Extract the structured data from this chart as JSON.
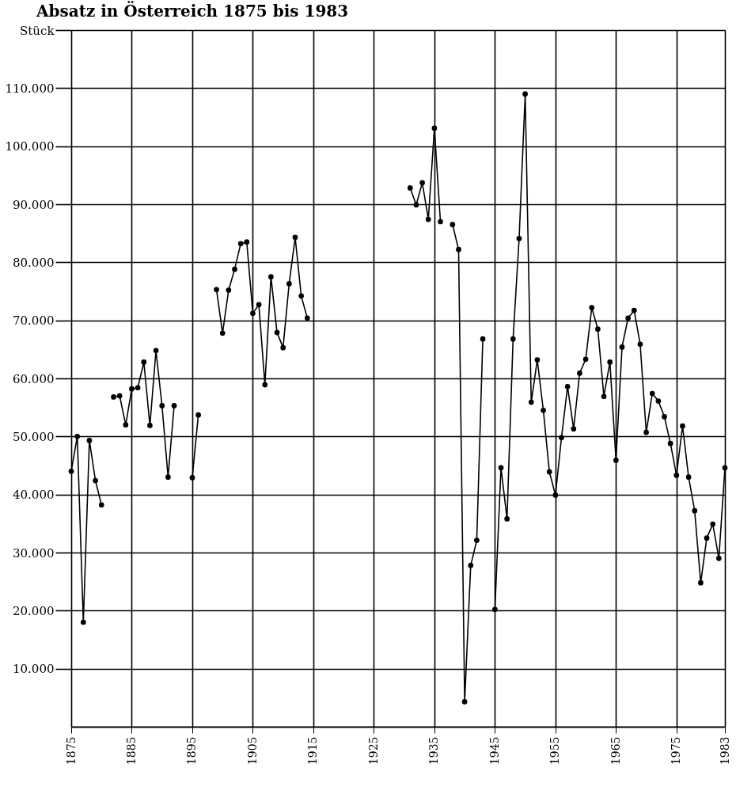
{
  "chart_data": {
    "type": "line",
    "title": "Absatz in Österreich 1875 bis 1983",
    "x": [
      1875,
      1876,
      1877,
      1878,
      1879,
      1880,
      1881,
      1882,
      1883,
      1884,
      1885,
      1886,
      1887,
      1888,
      1889,
      1890,
      1891,
      1892,
      1893,
      1895,
      1896,
      1897,
      1899,
      1900,
      1901,
      1902,
      1903,
      1904,
      1905,
      1906,
      1907,
      1908,
      1909,
      1910,
      1911,
      1912,
      1913,
      1914,
      1915,
      1931,
      1932,
      1933,
      1934,
      1935,
      1936,
      1937,
      1938,
      1939,
      1940,
      1941,
      1942,
      1943,
      1944,
      1945,
      1946,
      1947,
      1948,
      1949,
      1950,
      1951,
      1952,
      1953,
      1954,
      1955,
      1956,
      1957,
      1958,
      1959,
      1960,
      1961,
      1962,
      1963,
      1964,
      1965,
      1966,
      1967,
      1968,
      1969,
      1970,
      1971,
      1972,
      1973,
      1974,
      1975,
      1976,
      1977,
      1978,
      1979,
      1980,
      1981,
      1982,
      1983
    ],
    "series": [
      {
        "color": "#000000",
        "values": [
          44000,
          50000,
          18000,
          49300,
          42400,
          38200,
          null,
          56800,
          57000,
          52000,
          58200,
          58400,
          62800,
          51900,
          64800,
          55300,
          43000,
          55300,
          null,
          42900,
          53700,
          null,
          75300,
          67800,
          75200,
          78800,
          83200,
          83500,
          71200,
          72700,
          58900,
          77500,
          67900,
          65300,
          76300,
          84300,
          74200,
          70400,
          null,
          92800,
          89900,
          93700,
          87400,
          103100,
          87000,
          null,
          86500,
          82200,
          4300,
          27800,
          32100,
          66800,
          null,
          20200,
          44600,
          35800,
          66800,
          84100,
          109000,
          55900,
          63200,
          54500,
          43900,
          39900,
          49800,
          58600,
          51300,
          60900,
          63300,
          72200,
          68500,
          56900,
          62800,
          45900,
          65400,
          70400,
          71700,
          65900,
          50700,
          57400,
          56100,
          53400,
          48800,
          43300,
          51800,
          43000,
          37200,
          24800,
          32500,
          34900,
          29000,
          44600
        ]
      }
    ],
    "xlim": [
      1875,
      1983
    ],
    "xticks": [
      1875,
      1885,
      1895,
      1905,
      1915,
      1925,
      1935,
      1945,
      1955,
      1965,
      1975,
      1983
    ],
    "ylim": [
      0,
      120000
    ],
    "yticks": [
      {
        "value": 10000,
        "label": "10.000"
      },
      {
        "value": 20000,
        "label": "20.000"
      },
      {
        "value": 30000,
        "label": "30.000"
      },
      {
        "value": 40000,
        "label": "40.000"
      },
      {
        "value": 50000,
        "label": "50.000"
      },
      {
        "value": 60000,
        "label": "60.000"
      },
      {
        "value": 70000,
        "label": "70.000"
      },
      {
        "value": 80000,
        "label": "80.000"
      },
      {
        "value": 90000,
        "label": "90.000"
      },
      {
        "value": 100000,
        "label": "100.000"
      },
      {
        "value": 110000,
        "label": "110.000"
      },
      {
        "value": 120000,
        "label": "Stück"
      }
    ],
    "grid": true,
    "marker": "circle",
    "line_style": "solid",
    "legend": false
  }
}
